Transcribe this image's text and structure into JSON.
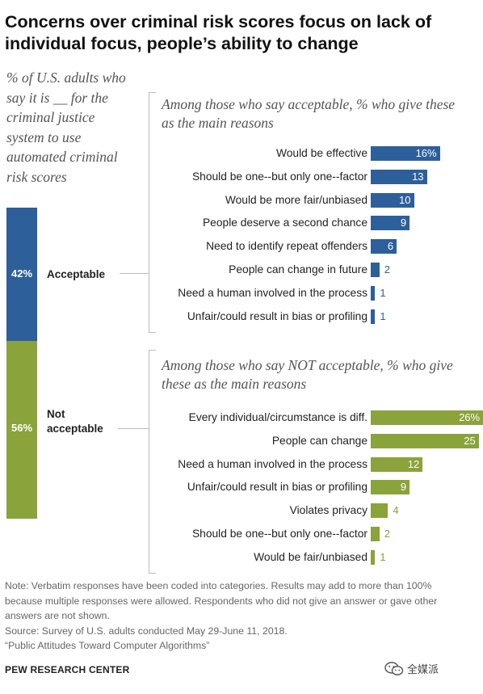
{
  "title": "Concerns over criminal risk scores focus on lack of individual focus, people’s ability to change",
  "intro": "% of U.S. adults who say it is __ for the criminal justice system to use automated criminal risk scores",
  "colors": {
    "acceptable": "#2d5f9a",
    "not_acceptable": "#8aa33b",
    "bracket": "#bbbbbb"
  },
  "chart_data": {
    "type": "bar",
    "stacked_share": [
      {
        "label": "Acceptable",
        "value": 42,
        "display": "42%"
      },
      {
        "label": "Not acceptable",
        "value": 56,
        "display": "56%"
      }
    ],
    "groups": [
      {
        "heading": "Among those who say acceptable, % who give these as the main reasons",
        "categories": [
          "Would be effective",
          "Should be one--but only one--factor",
          "Would be more fair/unbiased",
          "People deserve a second chance",
          "Need to identify repeat offenders",
          "People can change in future",
          "Need a human involved in the process",
          "Unfair/could result in bias or profiling"
        ],
        "values": [
          16,
          13,
          10,
          9,
          6,
          2,
          1,
          1
        ],
        "labels": [
          "16%",
          "13",
          "10",
          "9",
          "6",
          "2",
          "1",
          "1"
        ]
      },
      {
        "heading": "Among those who say NOT acceptable, % who give these as the main reasons",
        "categories": [
          "Every individual/circumstance is diff.",
          "People can change",
          "Need a human involved in the process",
          "Unfair/could result in bias or profiling",
          "Violates privacy",
          "Should be one--but only one--factor",
          "Would be fair/unbiased"
        ],
        "values": [
          26,
          25,
          12,
          9,
          4,
          2,
          1
        ],
        "labels": [
          "26%",
          "25",
          "12",
          "9",
          "4",
          "2",
          "1"
        ]
      }
    ]
  },
  "notes": {
    "note": "Note: Verbatim responses have been coded into categories. Results may add to more than 100% because multiple responses were allowed. Respondents who did not give an answer or gave other answers are not shown.",
    "source": "Source: Survey of U.S. adults conducted May 29-June 11, 2018.",
    "report": "“Public Attitudes Toward Computer Algorithms”"
  },
  "brand": "PEW RESEARCH CENTER",
  "watermark": {
    "text": "全媒派",
    "icon": "wechat-icon"
  }
}
